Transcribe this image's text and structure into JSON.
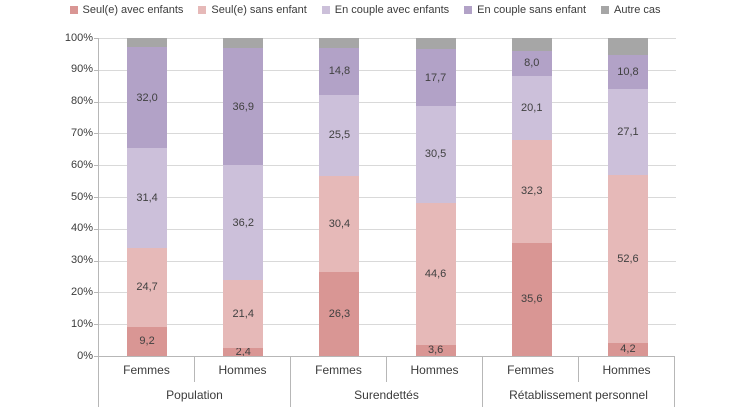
{
  "chart_data": {
    "type": "bar",
    "stacked": true,
    "orientation": "vertical",
    "unit": "percent",
    "title": "",
    "xlabel": "",
    "ylabel": "",
    "grid": true,
    "legend_position": "top",
    "y_axis": {
      "min": 0,
      "max": 100,
      "tick_step": 10,
      "tick_labels": [
        "0%",
        "10%",
        "20%",
        "30%",
        "40%",
        "50%",
        "60%",
        "70%",
        "80%",
        "90%",
        "100%"
      ]
    },
    "legend": [
      {
        "label": "Seul(e) avec enfants",
        "color": "#D99694"
      },
      {
        "label": "Seul(e) sans enfant",
        "color": "#E6B9B8"
      },
      {
        "label": "En couple avec enfants",
        "color": "#CCC0DA"
      },
      {
        "label": "En couple sans enfant",
        "color": "#B2A2C7"
      },
      {
        "label": "Autre cas",
        "color": "#A6A6A6"
      }
    ],
    "groups": [
      {
        "label": "Population",
        "bars": [
          {
            "category": "Femmes",
            "segments": [
              {
                "series": "Seul(e) avec enfants",
                "value": 9.2,
                "label": "9,2"
              },
              {
                "series": "Seul(e) sans enfant",
                "value": 24.7,
                "label": "24,7"
              },
              {
                "series": "En couple avec enfants",
                "value": 31.4,
                "label": "31,4"
              },
              {
                "series": "En couple sans enfant",
                "value": 32.0,
                "label": "32,0"
              },
              {
                "series": "Autre cas",
                "value": 2.7,
                "label": ""
              }
            ]
          },
          {
            "category": "Hommes",
            "segments": [
              {
                "series": "Seul(e) avec enfants",
                "value": 2.4,
                "label": "2,4"
              },
              {
                "series": "Seul(e) sans enfant",
                "value": 21.4,
                "label": "21,4"
              },
              {
                "series": "En couple avec enfants",
                "value": 36.2,
                "label": "36,2"
              },
              {
                "series": "En couple sans enfant",
                "value": 36.9,
                "label": "36,9"
              },
              {
                "series": "Autre cas",
                "value": 3.1,
                "label": ""
              }
            ]
          }
        ]
      },
      {
        "label": "Surendettés",
        "bars": [
          {
            "category": "Femmes",
            "segments": [
              {
                "series": "Seul(e) avec enfants",
                "value": 26.3,
                "label": "26,3"
              },
              {
                "series": "Seul(e) sans enfant",
                "value": 30.4,
                "label": "30,4"
              },
              {
                "series": "En couple avec enfants",
                "value": 25.5,
                "label": "25,5"
              },
              {
                "series": "En couple sans enfant",
                "value": 14.8,
                "label": "14,8"
              },
              {
                "series": "Autre cas",
                "value": 3.0,
                "label": ""
              }
            ]
          },
          {
            "category": "Hommes",
            "segments": [
              {
                "series": "Seul(e) avec enfants",
                "value": 3.6,
                "label": "3,6"
              },
              {
                "series": "Seul(e) sans enfant",
                "value": 44.6,
                "label": "44,6"
              },
              {
                "series": "En couple avec enfants",
                "value": 30.5,
                "label": "30,5"
              },
              {
                "series": "En couple sans enfant",
                "value": 17.7,
                "label": "17,7"
              },
              {
                "series": "Autre cas",
                "value": 3.6,
                "label": ""
              }
            ]
          }
        ]
      },
      {
        "label": "Rétablissement personnel",
        "bars": [
          {
            "category": "Femmes",
            "segments": [
              {
                "series": "Seul(e) avec enfants",
                "value": 35.6,
                "label": "35,6"
              },
              {
                "series": "Seul(e) sans enfant",
                "value": 32.3,
                "label": "32,3"
              },
              {
                "series": "En couple avec enfants",
                "value": 20.1,
                "label": "20,1"
              },
              {
                "series": "En couple sans enfant",
                "value": 8.0,
                "label": "8,0"
              },
              {
                "series": "Autre cas",
                "value": 4.0,
                "label": ""
              }
            ]
          },
          {
            "category": "Hommes",
            "segments": [
              {
                "series": "Seul(e) avec enfants",
                "value": 4.2,
                "label": "4,2"
              },
              {
                "series": "Seul(e) sans enfant",
                "value": 52.6,
                "label": "52,6"
              },
              {
                "series": "En couple avec enfants",
                "value": 27.1,
                "label": "27,1"
              },
              {
                "series": "En couple sans enfant",
                "value": 10.8,
                "label": "10,8"
              },
              {
                "series": "Autre cas",
                "value": 5.3,
                "label": ""
              }
            ]
          }
        ]
      }
    ],
    "colors": {
      "gridline": "#D9D9D9",
      "axis_line": "#B7B7B7",
      "text": "#3B3B3B",
      "data_label": "#404040",
      "background": "#FFFFFF"
    }
  }
}
